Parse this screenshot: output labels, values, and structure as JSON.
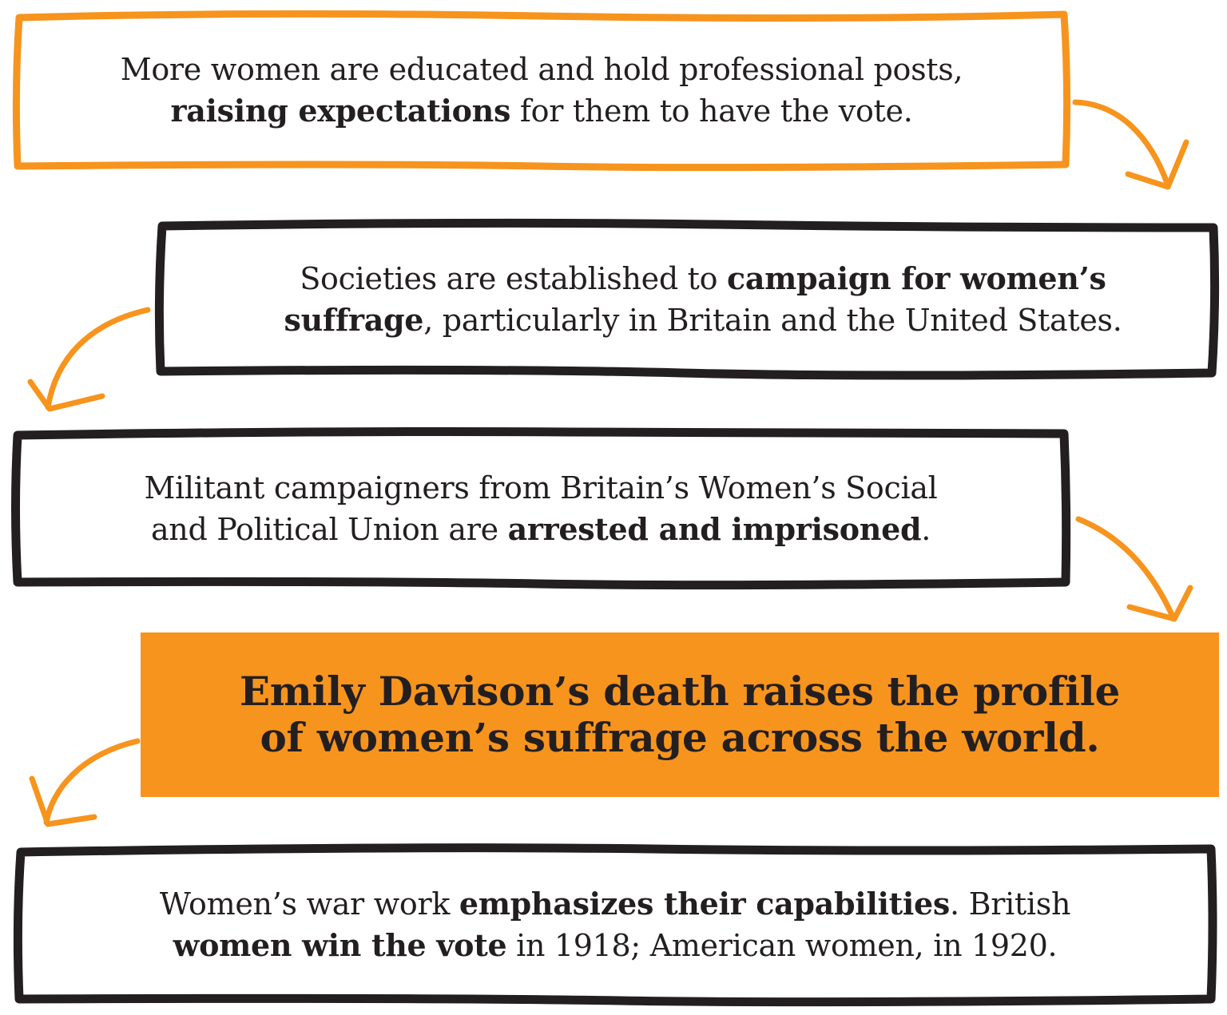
{
  "colors": {
    "orange": "#f7941d",
    "ink": "#231f20",
    "background": "#ffffff"
  },
  "steps": [
    {
      "line1": {
        "pre": "More women are educated and hold professional posts,",
        "bold": "",
        "post": ""
      },
      "line2": {
        "pre": "",
        "bold": "raising expectations",
        "post": " for them to have the vote."
      },
      "frame": "orange-outline"
    },
    {
      "line1": {
        "pre": "Societies are established to ",
        "bold": "campaign for women’s",
        "post": ""
      },
      "line2": {
        "pre": "",
        "bold": "suffrage",
        "post": ", particularly in Britain and the United States."
      },
      "frame": "black-outline"
    },
    {
      "line1": {
        "pre": "Militant campaigners from Britain’s Women’s Social",
        "bold": "",
        "post": ""
      },
      "line2": {
        "pre": "and Political Union are ",
        "bold": "arrested and imprisoned",
        "post": "."
      },
      "frame": "black-outline"
    },
    {
      "line1": {
        "pre": "",
        "bold": "Emily Davison’s death raises the profile",
        "post": ""
      },
      "line2": {
        "pre": "",
        "bold": "of women’s suffrage across the world.",
        "post": ""
      },
      "frame": "orange-fill"
    },
    {
      "line1": {
        "pre": "Women’s war work ",
        "bold": "emphasizes their capabilities",
        "post": ". British"
      },
      "line2": {
        "pre": "",
        "bold": "women win the vote",
        "post": " in 1918; American women, in 1920."
      },
      "frame": "black-outline"
    }
  ],
  "connectors": [
    "curved-arrow",
    "curved-arrow",
    "curved-arrow",
    "curved-arrow"
  ]
}
